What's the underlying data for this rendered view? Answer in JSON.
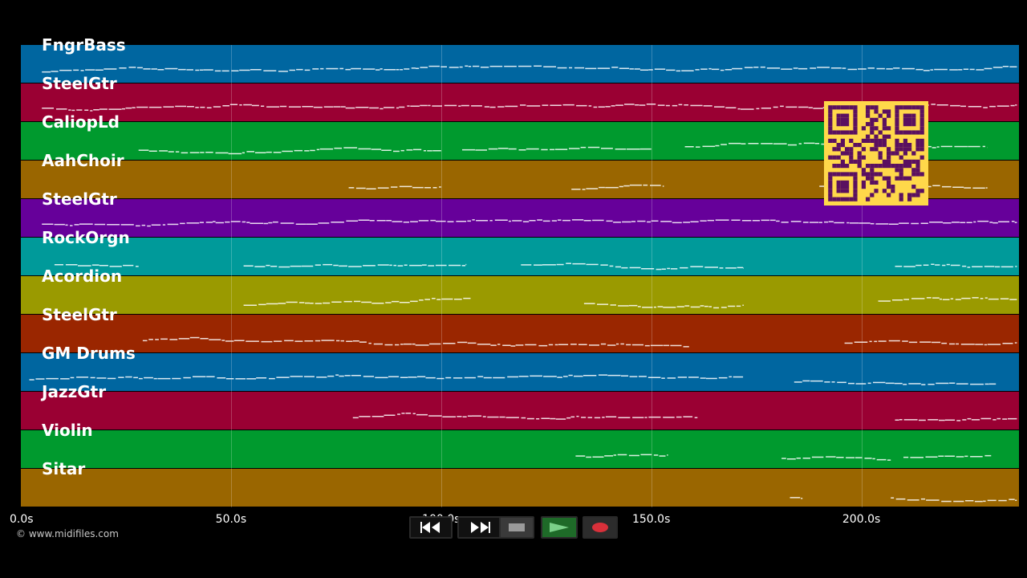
{
  "tracks": [
    {
      "name": "FngrBass",
      "color": "#0066a0"
    },
    {
      "name": "SteelGtr",
      "color": "#9a0033"
    },
    {
      "name": "CaliopLd",
      "color": "#009a2e"
    },
    {
      "name": "AahChoir",
      "color": "#9a6600"
    },
    {
      "name": "SteelGtr",
      "color": "#66009a"
    },
    {
      "name": "RockOrgn",
      "color": "#009a9a"
    },
    {
      "name": "Acordion",
      "color": "#9a9a00"
    },
    {
      "name": "SteelGtr",
      "color": "#9a2600"
    },
    {
      "name": "GM Drums",
      "color": "#0066a0"
    },
    {
      "name": "JazzGtr",
      "color": "#9a0033"
    },
    {
      "name": "Violin",
      "color": "#009a2e"
    },
    {
      "name": "Sitar",
      "color": "#9a6600"
    }
  ],
  "time_axis": {
    "ticks": [
      "0.0s",
      "50.0s",
      "100.0s",
      "150.0s",
      "200.0s"
    ],
    "tick_values": [
      0,
      50,
      100,
      150,
      200
    ],
    "max_seconds": 237.5
  },
  "copyright": "© www.midifiles.com",
  "transport": {
    "rewind_icon": "rewind-icon",
    "fast_forward_icon": "fast-forward-icon",
    "stop_icon": "stop-icon",
    "play_icon": "play-icon",
    "record_icon": "record-icon"
  },
  "qr_code": {
    "icon": "qr-code-icon",
    "color": "#ffd84a",
    "module_color": "#5a1060"
  }
}
